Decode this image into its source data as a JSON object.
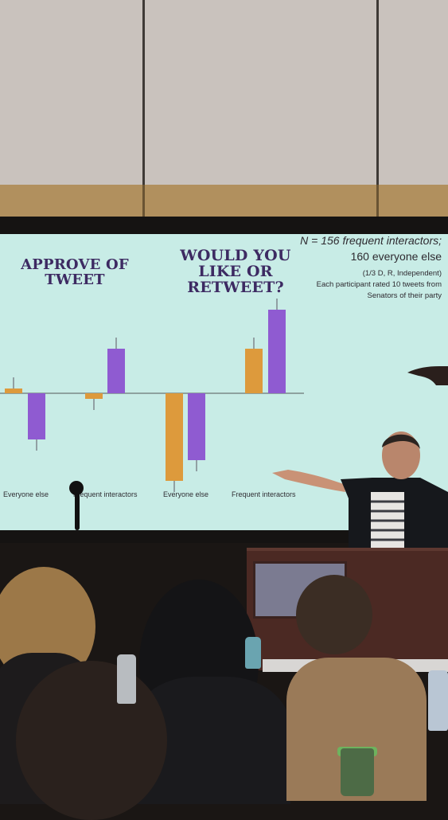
{
  "slide": {
    "title_left": "APPROVE OF TWEET",
    "title_right": "WOULD YOU LIKE OR RETWEET?",
    "note_line1": "N = 156 frequent interactors;",
    "note_line2": "160 everyone else",
    "note_line3": "(1/3 D, R, Independent)",
    "note_line4": "Each participant rated 10 tweets from",
    "note_line5": "Senators of their party",
    "group_labels": [
      "Everyone else",
      "Frequent interactors",
      "Everyone else",
      "Frequent interactors"
    ]
  },
  "chart_data": {
    "type": "bar",
    "panels": [
      {
        "title": "APPROVE OF TWEET",
        "categories": [
          "Everyone else",
          "Frequent interactors"
        ],
        "series": [
          {
            "color": "#dd9a3c",
            "values": [
              0.06,
              -0.07
            ]
          },
          {
            "color": "#8f5bd1",
            "values": [
              -0.58,
              0.56
            ]
          }
        ]
      },
      {
        "title": "WOULD YOU LIKE OR RETWEET?",
        "categories": [
          "Everyone else",
          "Frequent interactors"
        ],
        "series": [
          {
            "color": "#dd9a3c",
            "values": [
              -1.1,
              0.56
            ]
          },
          {
            "color": "#8f5bd1",
            "values": [
              -0.84,
              1.05
            ]
          }
        ]
      }
    ],
    "baseline": 0,
    "grid": false,
    "legend": "none"
  },
  "colors": {
    "slide_bg": "#c8ece6",
    "title": "#3d2a62",
    "orange_bar": "#dd9a3c",
    "purple_bar": "#8f5bd1"
  }
}
